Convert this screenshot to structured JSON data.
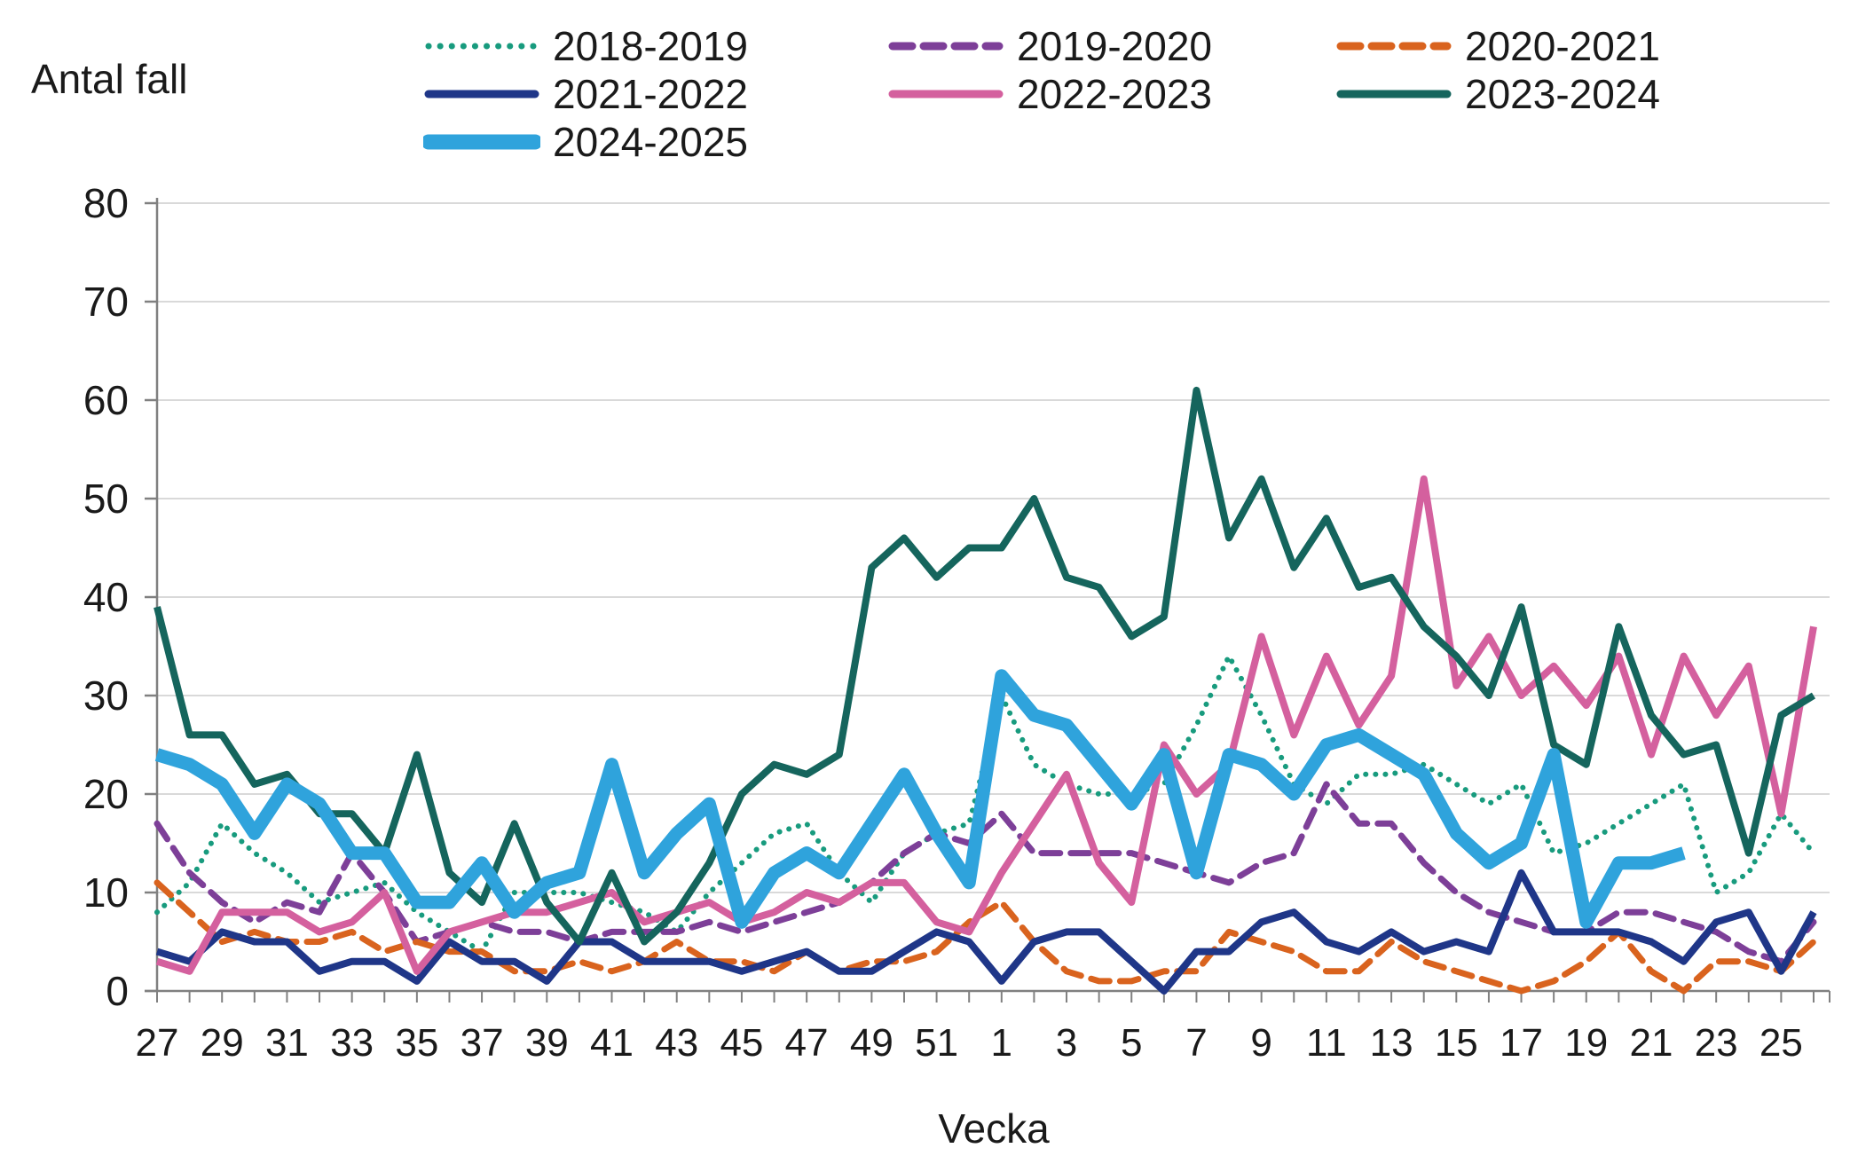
{
  "chart_title": "Antal fall",
  "xaxis_title": "Vecka",
  "legend": {
    "items": [
      {
        "label": "2018-2019",
        "color": "#189b7e",
        "dash": "dotted",
        "thick": false
      },
      {
        "label": "2019-2020",
        "color": "#7d3f98",
        "dash": "dashed",
        "thick": false
      },
      {
        "label": "2020-2021",
        "color": "#d9631e",
        "dash": "dashed",
        "thick": false
      },
      {
        "label": "2021-2022",
        "color": "#1f3688",
        "dash": "solid",
        "thick": false
      },
      {
        "label": "2022-2023",
        "color": "#d4609e",
        "dash": "solid",
        "thick": false
      },
      {
        "label": "2023-2024",
        "color": "#15655d",
        "dash": "solid",
        "thick": false
      },
      {
        "label": "2024-2025",
        "color": "#2fa3dc",
        "dash": "solid",
        "thick": true
      }
    ]
  },
  "chart_data": {
    "type": "line",
    "title": "Antal fall",
    "xlabel": "Vecka",
    "ylabel": "Antal fall",
    "ylim": [
      0,
      80
    ],
    "ytick_interval": 10,
    "grid": true,
    "legend_position": "top",
    "categories": [
      "27",
      "28",
      "29",
      "30",
      "31",
      "32",
      "33",
      "34",
      "35",
      "36",
      "37",
      "38",
      "39",
      "40",
      "41",
      "42",
      "43",
      "44",
      "45",
      "46",
      "47",
      "48",
      "49",
      "50",
      "51",
      "52",
      "1",
      "2",
      "3",
      "4",
      "5",
      "6",
      "7",
      "8",
      "9",
      "10",
      "11",
      "12",
      "13",
      "14",
      "15",
      "16",
      "17",
      "18",
      "19",
      "20",
      "21",
      "22",
      "23",
      "24",
      "25",
      "26"
    ],
    "x_tick_labels": [
      "27",
      "29",
      "31",
      "33",
      "35",
      "37",
      "39",
      "41",
      "43",
      "45",
      "47",
      "49",
      "51",
      "1",
      "3",
      "5",
      "7",
      "9",
      "11",
      "13",
      "15",
      "17",
      "19",
      "21",
      "23",
      "25"
    ],
    "series": [
      {
        "name": "2018-2019",
        "color": "#189b7e",
        "style": "dotted",
        "width": 6,
        "values": [
          8,
          11,
          17,
          14,
          12,
          9,
          10,
          11,
          8,
          6,
          4,
          10,
          10,
          10,
          9,
          8,
          6,
          10,
          13,
          16,
          17,
          12,
          9,
          14,
          16,
          17,
          30,
          23,
          21,
          20,
          20,
          21,
          27,
          34,
          28,
          21,
          19,
          22,
          22,
          23,
          21,
          19,
          21,
          14,
          15,
          17,
          19,
          21,
          10,
          12,
          18,
          14
        ]
      },
      {
        "name": "2019-2020",
        "color": "#7d3f98",
        "style": "dashed",
        "width": 7,
        "values": [
          17,
          12,
          9,
          7,
          9,
          8,
          14,
          10,
          5,
          6,
          7,
          6,
          6,
          5,
          6,
          6,
          6,
          7,
          6,
          7,
          8,
          9,
          11,
          14,
          16,
          15,
          18,
          14,
          14,
          14,
          14,
          13,
          12,
          11,
          13,
          14,
          21,
          17,
          17,
          13,
          10,
          8,
          7,
          6,
          6,
          8,
          8,
          7,
          6,
          4,
          3,
          7
        ]
      },
      {
        "name": "2020-2021",
        "color": "#d9631e",
        "style": "dashed",
        "width": 7,
        "values": [
          11,
          8,
          5,
          6,
          5,
          5,
          6,
          4,
          5,
          4,
          4,
          2,
          2,
          3,
          2,
          3,
          5,
          3,
          3,
          2,
          4,
          2,
          3,
          3,
          4,
          7,
          9,
          5,
          2,
          1,
          1,
          2,
          2,
          6,
          5,
          4,
          2,
          2,
          5,
          3,
          2,
          1,
          0,
          1,
          3,
          6,
          2,
          0,
          3,
          3,
          2,
          5
        ]
      },
      {
        "name": "2021-2022",
        "color": "#1f3688",
        "style": "solid",
        "width": 8,
        "values": [
          4,
          3,
          6,
          5,
          5,
          2,
          3,
          3,
          1,
          5,
          3,
          3,
          1,
          5,
          5,
          3,
          3,
          3,
          2,
          3,
          4,
          2,
          2,
          4,
          6,
          5,
          1,
          5,
          6,
          6,
          3,
          0,
          4,
          4,
          7,
          8,
          5,
          4,
          6,
          4,
          5,
          4,
          12,
          6,
          6,
          6,
          5,
          3,
          7,
          8,
          2,
          8
        ]
      },
      {
        "name": "2022-2023",
        "color": "#d4609e",
        "style": "solid",
        "width": 8,
        "values": [
          3,
          2,
          8,
          8,
          8,
          6,
          7,
          10,
          2,
          6,
          7,
          8,
          8,
          9,
          10,
          7,
          8,
          9,
          7,
          8,
          10,
          9,
          11,
          11,
          7,
          6,
          12,
          17,
          22,
          13,
          9,
          25,
          20,
          23,
          36,
          26,
          34,
          27,
          32,
          52,
          31,
          36,
          30,
          33,
          29,
          34,
          24,
          34,
          28,
          33,
          18,
          37
        ]
      },
      {
        "name": "2023-2024",
        "color": "#15655d",
        "style": "solid",
        "width": 8,
        "values": [
          39,
          26,
          26,
          21,
          22,
          18,
          18,
          14,
          24,
          12,
          9,
          17,
          9,
          5,
          12,
          5,
          8,
          13,
          20,
          23,
          22,
          24,
          43,
          46,
          42,
          45,
          45,
          50,
          42,
          41,
          36,
          38,
          61,
          46,
          52,
          43,
          48,
          41,
          42,
          37,
          34,
          30,
          39,
          25,
          23,
          37,
          28,
          24,
          25,
          14,
          28,
          30
        ]
      },
      {
        "name": "2024-2025",
        "color": "#2fa3dc",
        "style": "solid",
        "width": 15,
        "values": [
          24,
          23,
          21,
          16,
          21,
          19,
          14,
          14,
          9,
          9,
          13,
          8,
          11,
          12,
          23,
          12,
          16,
          19,
          7,
          12,
          14,
          12,
          17,
          22,
          16,
          11,
          32,
          28,
          27,
          23,
          19,
          24,
          12,
          24,
          23,
          20,
          25,
          26,
          24,
          22,
          16,
          13,
          15,
          24,
          7,
          13,
          13,
          14
        ]
      }
    ],
    "axis_color": "#808080",
    "grid_color": "#d9d9d9"
  }
}
